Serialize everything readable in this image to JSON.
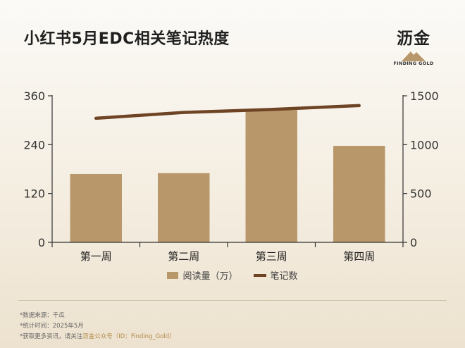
{
  "header": {
    "title": "小红书5月EDC相关笔记热度",
    "brand_name": "沥金",
    "brand_sub": "FINDING GOLD"
  },
  "legend": {
    "bar_label": "阅读量（万）",
    "line_label": "笔记数"
  },
  "notes": {
    "source": "*数据来源：千瓜",
    "time": "*统计时间：2025年5月",
    "more_prefix": "*获取更多资讯，请关注",
    "more_accent": "沥金公众号（ID：Finding_Gold）"
  },
  "colors": {
    "bar": "#b8976a",
    "line": "#6e4424",
    "axis": "#333333"
  },
  "chart_data": {
    "type": "bar",
    "categories": [
      "第一周",
      "第二周",
      "第三周",
      "第四周"
    ],
    "series": [
      {
        "name": "阅读量（万）",
        "type": "bar",
        "axis": "left",
        "values": [
          168,
          170,
          325,
          237
        ]
      },
      {
        "name": "笔记数",
        "type": "line",
        "axis": "right",
        "values": [
          1270,
          1330,
          1360,
          1400
        ]
      }
    ],
    "left_axis": {
      "ylim": [
        0,
        360
      ],
      "ticks": [
        0,
        120,
        240,
        360
      ]
    },
    "right_axis": {
      "ylim": [
        0,
        1500
      ],
      "ticks": [
        0,
        500,
        1000,
        1500
      ]
    },
    "grid": false,
    "legend_position": "bottom"
  }
}
